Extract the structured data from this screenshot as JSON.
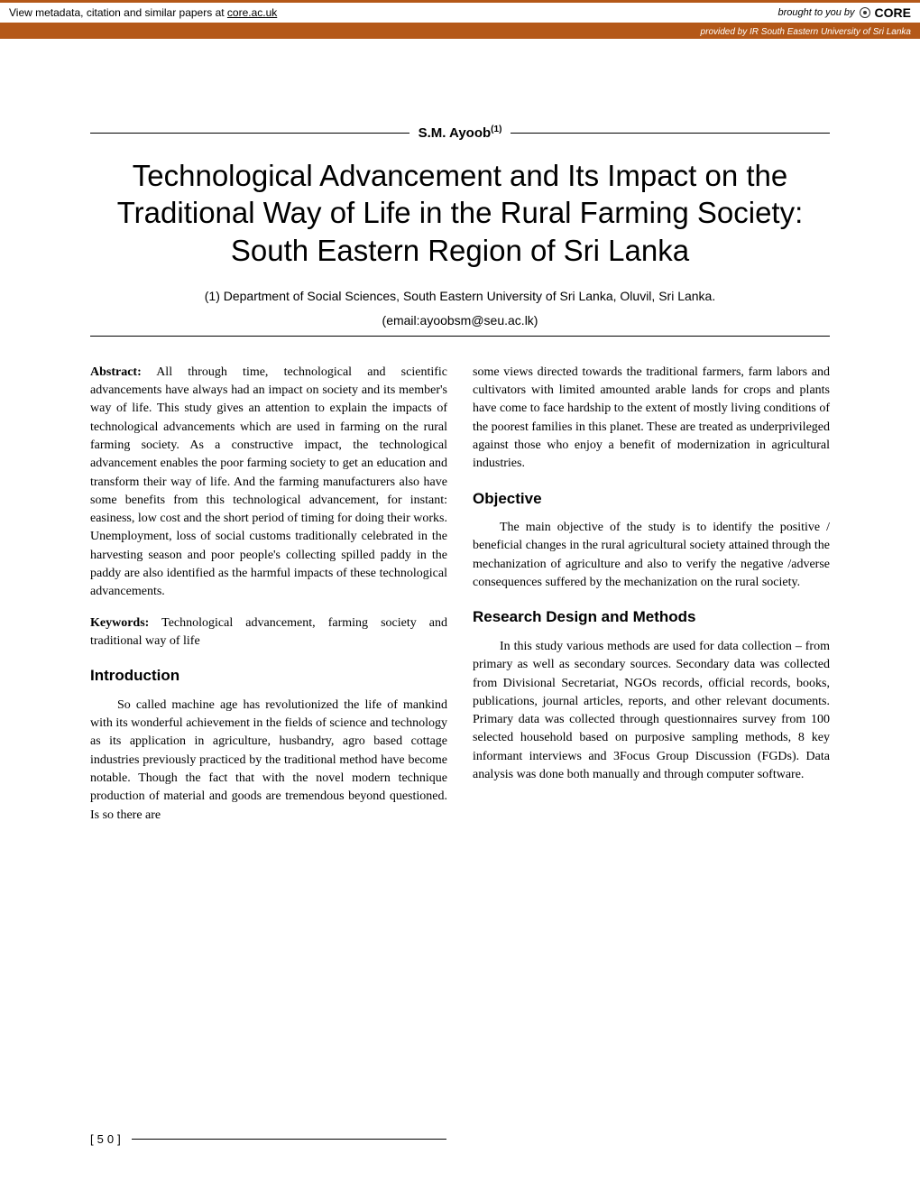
{
  "banner": {
    "left_text": "View metadata, citation and similar papers at ",
    "left_link": "core.ac.uk",
    "brought_by": "brought to you by",
    "core_label": "CORE",
    "provided_by": "provided by IR South Eastern University of Sri Lanka",
    "bg_color": "#b45818"
  },
  "author": {
    "name": "S.M. Ayoob",
    "marker": "(1)"
  },
  "title": "Technological Advancement and Its Impact on the Traditional Way of Life in the Rural Farming Society: South Eastern Region of Sri Lanka",
  "affiliation_line": "(1) Department of Social Sciences, South Eastern University of Sri Lanka, Oluvil, Sri Lanka.",
  "email_line": "(email:ayoobsm@seu.ac.lk)",
  "sections": {
    "abstract_label": "Abstract:",
    "abstract": " All through time, technological and scientific advancements have always had an impact on society and its member's way of life. This study gives an attention to explain the impacts of technological advancements which are used in farming on the rural farming society. As a constructive impact, the technological advancement enables the poor farming society to get an education and transform their way of life. And the farming manufacturers also have some benefits from this technological advancement, for instant: easiness, low cost and the short period of timing for doing their works. Unemployment, loss of social customs traditionally celebrated in the harvesting season and poor people's collecting spilled paddy in the paddy are also identified as the harmful impacts of these technological advancements.",
    "keywords_label": "Keywords:",
    "keywords": " Technological advancement, farming society and traditional way of life",
    "introduction_heading": "Introduction",
    "introduction_p1": "So called machine age has revolutionized the life of mankind with its wonderful achievement in the fields of science and technology as its application in agriculture, husbandry, agro based cottage industries previously practiced by the traditional method have become notable. Though the fact that with the novel modern technique production of material and goods are tremendous beyond questioned. Is so there are",
    "col2_p1": "some views directed towards the traditional farmers, farm labors and cultivators with limited amounted arable lands for crops and plants have come to face hardship to the extent of mostly living conditions of the poorest families in this planet. These are treated as underprivileged against those who enjoy a benefit of modernization in agricultural industries.",
    "objective_heading": "Objective",
    "objective_p": "The main objective of the study is to identify the positive / beneficial changes in the rural agricultural society attained through the mechanization of agriculture and also to verify the negative /adverse consequences suffered by the mechanization   on the rural society.",
    "research_heading": "Research Design and Methods",
    "research_p": "In this study various methods are used for data collection – from primary as well as secondary sources. Secondary data was collected from Divisional Secretariat, NGOs records, official records, books, publications, journal articles, reports, and other relevant documents. Primary data was collected through questionnaires survey from 100 selected household based on purposive sampling methods, 8 key informant interviews and 3Focus Group Discussion (FGDs). Data analysis was done both manually and through computer software."
  },
  "page_number": "[50]"
}
